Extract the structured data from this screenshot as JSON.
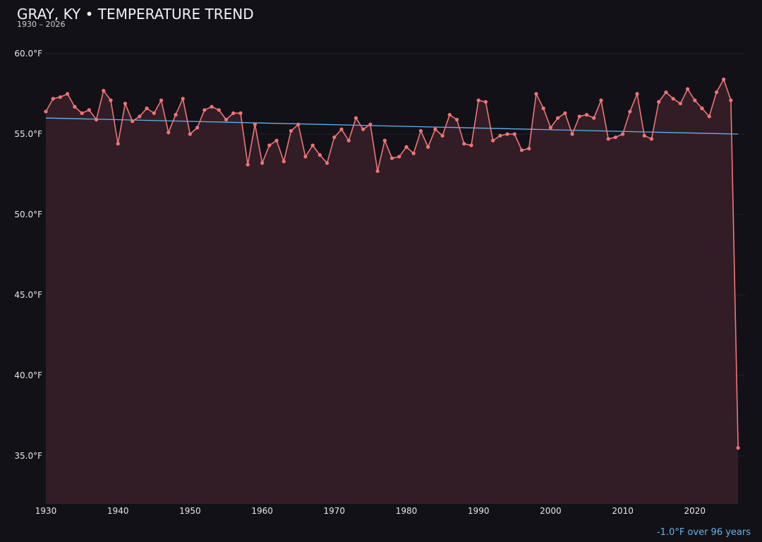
{
  "colors": {
    "background": "#121118",
    "series": "#f07478",
    "area": "#351f27",
    "trend": "#63b3ed",
    "grid": "#22212a",
    "text": "#e6e6e6"
  },
  "chart_data": {
    "type": "line",
    "title": "GRAY, KY • TEMPERATURE TREND",
    "subtitle": "1930 – 2026",
    "xlabel": "",
    "ylabel": "",
    "xlim": [
      1930,
      2026
    ],
    "ylim": [
      32.0,
      61.5
    ],
    "x_ticks": [
      1930,
      1940,
      1950,
      1960,
      1970,
      1980,
      1990,
      2000,
      2010,
      2020
    ],
    "y_ticks": [
      35,
      40,
      45,
      50,
      55,
      60
    ],
    "y_tick_labels": [
      "35.0°F",
      "40.0°F",
      "45.0°F",
      "50.0°F",
      "55.0°F",
      "60.0°F"
    ],
    "grid": true,
    "series": [
      {
        "x": [
          1930,
          1931,
          1932,
          1933,
          1934,
          1935,
          1936,
          1937,
          1938,
          1939,
          1940,
          1941,
          1942,
          1943,
          1944,
          1945,
          1946,
          1947,
          1948,
          1949,
          1950,
          1951,
          1952,
          1953,
          1954,
          1955,
          1956,
          1957,
          1958,
          1959,
          1960,
          1961,
          1962,
          1963,
          1964,
          1965,
          1966,
          1967,
          1968,
          1969,
          1970,
          1971,
          1972,
          1973,
          1974,
          1975,
          1976,
          1977,
          1978,
          1979,
          1980,
          1981,
          1982,
          1983,
          1984,
          1985,
          1986,
          1987,
          1988,
          1989,
          1990,
          1991,
          1992,
          1993,
          1994,
          1995,
          1996,
          1997,
          1998,
          1999,
          2000,
          2001,
          2002,
          2003,
          2004,
          2005,
          2006,
          2007,
          2008,
          2009,
          2010,
          2011,
          2012,
          2013,
          2014,
          2015,
          2016,
          2017,
          2018,
          2019,
          2020,
          2021,
          2022,
          2023,
          2024,
          2025,
          2026
        ],
        "values": [
          56.4,
          57.2,
          57.3,
          57.5,
          56.7,
          56.3,
          56.5,
          55.9,
          57.7,
          57.1,
          54.4,
          56.9,
          55.8,
          56.1,
          56.6,
          56.3,
          57.1,
          55.1,
          56.2,
          57.2,
          55.0,
          55.4,
          56.5,
          56.7,
          56.5,
          55.9,
          56.3,
          56.3,
          53.1,
          55.6,
          53.2,
          54.3,
          54.6,
          53.3,
          55.2,
          55.6,
          53.6,
          54.3,
          53.7,
          53.2,
          54.8,
          55.3,
          54.6,
          56.0,
          55.3,
          55.6,
          52.7,
          54.6,
          53.5,
          53.6,
          54.2,
          53.8,
          55.2,
          54.2,
          55.3,
          54.9,
          56.2,
          55.9,
          54.4,
          54.3,
          57.1,
          57.0,
          54.6,
          54.9,
          55.0,
          55.0,
          54.0,
          54.1,
          57.5,
          56.6,
          55.4,
          56.0,
          56.3,
          55.0,
          56.1,
          56.2,
          56.0,
          57.1,
          54.7,
          54.8,
          55.0,
          56.4,
          57.5,
          54.9,
          54.7,
          57.0,
          57.6,
          57.2,
          56.9,
          57.8,
          57.1,
          56.6,
          56.1,
          57.6,
          58.4,
          57.1,
          35.5
        ]
      }
    ],
    "trend": {
      "x": [
        1930,
        2026
      ],
      "values": [
        56.0,
        55.0
      ],
      "label": "-1.0°F over 96 years"
    }
  }
}
